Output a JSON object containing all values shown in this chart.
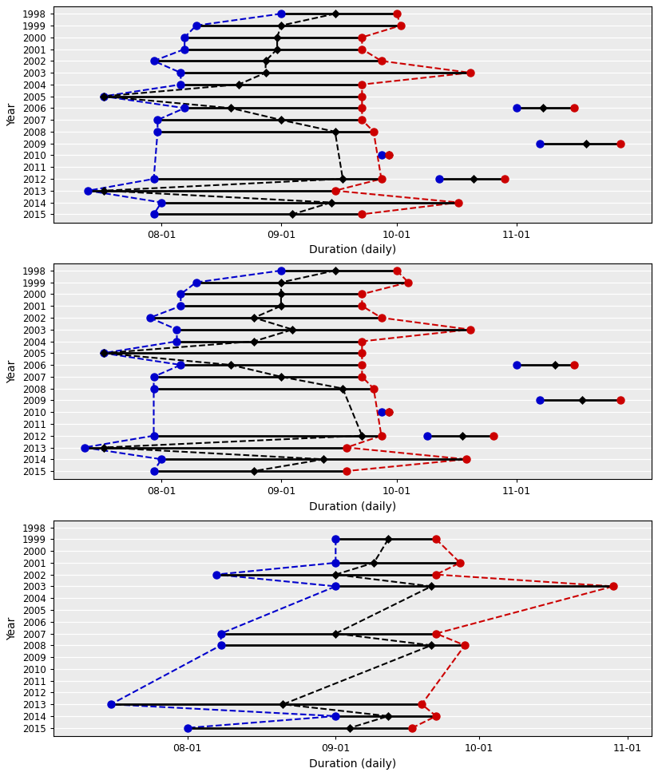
{
  "years": [
    1998,
    1999,
    2000,
    2001,
    2002,
    2003,
    2004,
    2005,
    2006,
    2007,
    2008,
    2009,
    2010,
    2011,
    2012,
    2013,
    2014,
    2015
  ],
  "xtick_days": [
    213,
    244,
    274,
    305
  ],
  "xtick_labels": [
    "08-01",
    "09-01",
    "10-01",
    "11-01"
  ],
  "xlabel": "Duration (daily)",
  "ylabel": "Year",
  "bg_color": "#ebebeb",
  "grid_color": "#ffffff",
  "line_color": "#000000",
  "start_color": "#0000cc",
  "mid_color": "#000000",
  "end_color": "#cc0000",
  "dash_blue": "#0000cc",
  "dash_black": "#000000",
  "dash_red": "#cc0000",
  "p1_main": {
    "1998": [
      244,
      258,
      274
    ],
    "1999": [
      222,
      244,
      275
    ],
    "2000": [
      219,
      243,
      265
    ],
    "2001": [
      219,
      243,
      265
    ],
    "2002": [
      211,
      240,
      270
    ],
    "2003": [
      218,
      240,
      293
    ],
    "2004": [
      218,
      233,
      265
    ],
    "2005": [
      198,
      198,
      265
    ],
    "2006": [
      219,
      231,
      265
    ],
    "2007": [
      212,
      244,
      265
    ],
    "2008": [
      212,
      258,
      268
    ],
    "2009": null,
    "2010": null,
    "2011": null,
    "2012": [
      211,
      260,
      270
    ],
    "2013": [
      194,
      198,
      258
    ],
    "2014": [
      213,
      257,
      290
    ],
    "2015": [
      211,
      247,
      265
    ]
  },
  "p1_extra": {
    "1998": null,
    "1999": null,
    "2000": null,
    "2001": null,
    "2002": null,
    "2003": null,
    "2004": null,
    "2005": null,
    "2006": [
      305,
      312,
      320
    ],
    "2007": null,
    "2008": null,
    "2009": [
      311,
      323,
      332
    ],
    "2010": [
      270,
      272,
      272
    ],
    "2011": null,
    "2012": [
      285,
      294,
      302
    ],
    "2013": null,
    "2014": null,
    "2015": null
  },
  "p1_xlim": [
    185,
    340
  ],
  "p2_main": {
    "1998": [
      244,
      258,
      274
    ],
    "1999": [
      222,
      244,
      277
    ],
    "2000": [
      218,
      244,
      265
    ],
    "2001": [
      218,
      244,
      265
    ],
    "2002": [
      210,
      237,
      270
    ],
    "2003": [
      217,
      247,
      293
    ],
    "2004": [
      217,
      237,
      265
    ],
    "2005": [
      198,
      198,
      265
    ],
    "2006": [
      218,
      231,
      265
    ],
    "2007": [
      211,
      244,
      265
    ],
    "2008": [
      211,
      260,
      268
    ],
    "2009": null,
    "2010": null,
    "2011": null,
    "2012": [
      211,
      265,
      270
    ],
    "2013": [
      193,
      198,
      261
    ],
    "2014": [
      213,
      255,
      292
    ],
    "2015": [
      211,
      237,
      261
    ]
  },
  "p2_extra": {
    "1998": null,
    "1999": null,
    "2000": null,
    "2001": null,
    "2002": null,
    "2003": null,
    "2004": null,
    "2005": null,
    "2006": [
      305,
      315,
      320
    ],
    "2007": null,
    "2008": null,
    "2009": [
      311,
      322,
      332
    ],
    "2010": [
      270,
      272,
      272
    ],
    "2011": null,
    "2012": [
      282,
      291,
      299
    ],
    "2013": null,
    "2014": null,
    "2015": null
  },
  "p2_xlim": [
    185,
    340
  ],
  "p3_main": {
    "1998": null,
    "1999": [
      244,
      255,
      265
    ],
    "2000": null,
    "2001": [
      244,
      252,
      270
    ],
    "2002": [
      219,
      244,
      265
    ],
    "2003": [
      244,
      264,
      302
    ],
    "2004": null,
    "2005": null,
    "2006": null,
    "2007": [
      220,
      244,
      265
    ],
    "2008": [
      220,
      264,
      271
    ],
    "2009": null,
    "2010": null,
    "2011": null,
    "2012": null,
    "2013": [
      197,
      233,
      262
    ],
    "2014": [
      244,
      255,
      265
    ],
    "2015": [
      213,
      247,
      260
    ]
  },
  "p3_extra": {
    "1998": null,
    "1999": null,
    "2000": null,
    "2001": null,
    "2002": null,
    "2003": null,
    "2004": null,
    "2005": null,
    "2006": null,
    "2007": null,
    "2008": null,
    "2009": null,
    "2010": null,
    "2011": null,
    "2012": null,
    "2013": null,
    "2014": null,
    "2015": null
  },
  "p3_xlim": [
    185,
    310
  ]
}
